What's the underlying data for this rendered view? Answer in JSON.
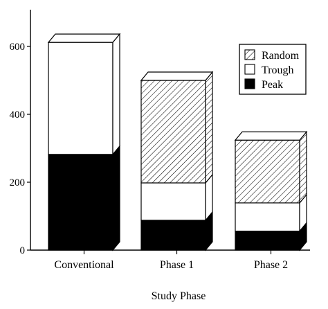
{
  "chart_data": {
    "type": "bar",
    "stacked": true,
    "three_d": true,
    "title": "",
    "xlabel": "Study Phase",
    "ylabel": "",
    "categories": [
      "Conventional",
      "Phase 1",
      "Phase 2"
    ],
    "ylim": [
      0,
      650
    ],
    "yticks": [
      0,
      200,
      400,
      600
    ],
    "ytick_labels": [
      "0",
      "200",
      "400",
      "600"
    ],
    "series": [
      {
        "name": "Peak",
        "values": [
          282,
          88,
          56
        ],
        "fill": "solid",
        "color": "#000000"
      },
      {
        "name": "Trough",
        "values": [
          330,
          110,
          83
        ],
        "fill": "solid",
        "color": "#ffffff"
      },
      {
        "name": "Random",
        "values": [
          0,
          302,
          185
        ],
        "fill": "hatched",
        "color": "#000000"
      }
    ],
    "legend": {
      "placement": "top-right",
      "order": [
        "Random",
        "Trough",
        "Peak"
      ]
    },
    "grid": false
  }
}
